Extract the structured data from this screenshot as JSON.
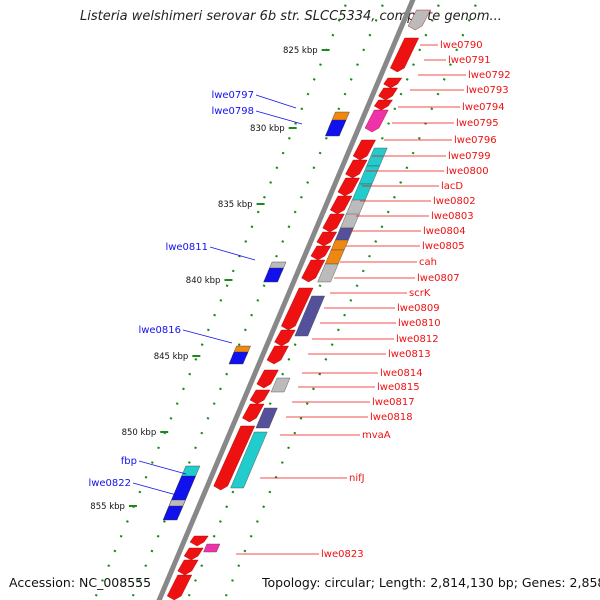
{
  "title": "Listeria welshimeri serovar 6b str. SLCC5334, complete genom...",
  "footer": {
    "accession": "Accession: NC_008555",
    "summary": "Topology: circular; Length: 2,814,130 bp; Genes: 2,858"
  },
  "colors": {
    "forward": "#ee1111",
    "reverse": "#1111ee",
    "backbone": "#888888",
    "tick": "#1a8a1a",
    "cyan": "#22cccc",
    "orange": "#ee8811",
    "purple": "#55509a",
    "gray": "#bbbbbb",
    "magenta": "#ee33aa"
  },
  "scale_labels": [
    "825 kbp",
    "830 kbp",
    "835 kbp",
    "840 kbp",
    "845 kbp",
    "850 kbp",
    "855 kbp"
  ],
  "forward_labels": [
    "lwe0790",
    "lwe0791",
    "lwe0792",
    "lwe0793",
    "lwe0794",
    "lwe0795",
    "lwe0796",
    "lwe0799",
    "lwe0800",
    "lacD",
    "lwe0802",
    "lwe0803",
    "lwe0804",
    "lwe0805",
    "cah",
    "lwe0807",
    "scrK",
    "lwe0809",
    "lwe0810",
    "lwe0812",
    "lwe0813",
    "lwe0814",
    "lwe0815",
    "lwe0817",
    "lwe0818",
    "mvaA",
    "nifJ",
    "lwe0823"
  ],
  "reverse_labels": [
    "lwe0797",
    "lwe0798",
    "lwe0811",
    "lwe0816",
    "fbp",
    "lwe0822"
  ]
}
